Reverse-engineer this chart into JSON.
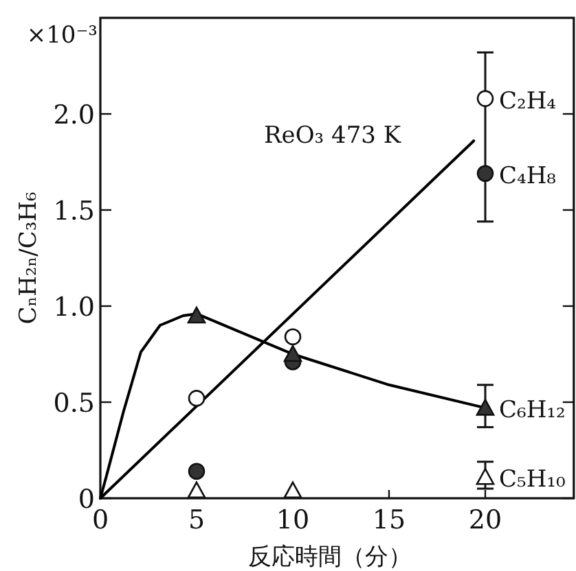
{
  "chart_data": {
    "type": "scatter",
    "xlabel": "反応時間（分）",
    "ylabel": "CₙH₂ₙ/C₃H₆",
    "annotations": [
      "×10⁻³",
      "ReO₃ 473 K"
    ],
    "x": [
      5,
      10,
      20
    ],
    "series": [
      {
        "name": "C₂H₄",
        "color": "#ffffff",
        "marker": "circle",
        "values": [
          0.52,
          0.84,
          2.08
        ],
        "errors": [
          null,
          null,
          [
            1.44,
            2.32
          ]
        ]
      },
      {
        "name": "C₄H₈",
        "color": "#333333",
        "marker": "circle",
        "values": [
          0.14,
          0.71,
          1.69
        ]
      },
      {
        "name": "C₆H₁₂",
        "color": "#333333",
        "marker": "triangle",
        "values": [
          0.95,
          0.75,
          0.47
        ],
        "errors": [
          null,
          null,
          [
            0.37,
            0.59
          ]
        ]
      },
      {
        "name": "C₅H₁₀",
        "color": "#ffffff",
        "marker": "triangle",
        "values": [
          0.04,
          0.04,
          0.11
        ],
        "errors": [
          null,
          null,
          [
            0.05,
            0.19
          ]
        ]
      },
      {
        "type": "line",
        "color": "#000000",
        "x": [
          0,
          19.4
        ],
        "values": [
          0,
          1.86
        ]
      },
      {
        "type": "line",
        "color": "#000000",
        "x": [
          0,
          0.3,
          1.2,
          2.1,
          3.1,
          4.3,
          5,
          10,
          15,
          20
        ],
        "values": [
          0,
          0.11,
          0.45,
          0.76,
          0.9,
          0.95,
          0.96,
          0.75,
          0.59,
          0.47
        ]
      }
    ],
    "xlim": [
      0,
      24.6
    ],
    "ylim": [
      0,
      2.5
    ],
    "xticks": [
      0,
      5,
      10,
      15,
      20
    ],
    "yticks": [
      0,
      {
        "value": 0.5,
        "label": "0.5"
      },
      {
        "value": 1,
        "label": "1.0"
      },
      {
        "value": 1.5,
        "label": "1.5"
      },
      {
        "value": 2,
        "label": "2.0"
      }
    ],
    "legend": "right",
    "grid": false
  }
}
